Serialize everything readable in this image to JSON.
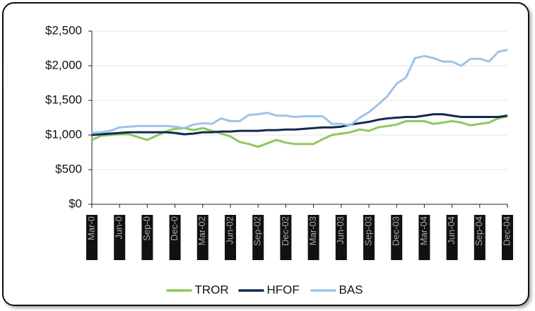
{
  "chart_data": {
    "type": "line",
    "categories": [
      "Mar-0",
      null,
      null,
      "Jun-0",
      null,
      null,
      "Sep-0",
      null,
      null,
      "Dec-0",
      null,
      null,
      "Mar-02",
      null,
      null,
      "Jun-02",
      null,
      null,
      "Sep-02",
      null,
      null,
      "Dec-02",
      null,
      null,
      "Mar-03",
      null,
      null,
      "Jun-03",
      null,
      null,
      "Sep-03",
      null,
      null,
      "Dec-03",
      null,
      null,
      "Mar-04",
      null,
      null,
      "Jun-04",
      null,
      null,
      "Sep-04",
      null,
      null,
      "Dec-04"
    ],
    "series": [
      {
        "name": "TROR",
        "color": "#8dc858",
        "values": [
          930,
          990,
          1000,
          1010,
          1010,
          970,
          930,
          990,
          1050,
          1090,
          1100,
          1070,
          1100,
          1060,
          1020,
          980,
          900,
          870,
          830,
          880,
          930,
          890,
          870,
          870,
          870,
          940,
          1000,
          1020,
          1040,
          1080,
          1060,
          1110,
          1130,
          1150,
          1200,
          1200,
          1200,
          1160,
          1180,
          1200,
          1180,
          1140,
          1160,
          1180,
          1240,
          1270
        ]
      },
      {
        "name": "HFOF",
        "color": "#0f2a4d",
        "values": [
          1000,
          1010,
          1020,
          1030,
          1040,
          1040,
          1040,
          1040,
          1040,
          1030,
          1010,
          1020,
          1040,
          1040,
          1050,
          1050,
          1060,
          1060,
          1060,
          1070,
          1070,
          1080,
          1080,
          1090,
          1100,
          1110,
          1110,
          1120,
          1150,
          1170,
          1190,
          1220,
          1240,
          1250,
          1260,
          1260,
          1280,
          1300,
          1300,
          1280,
          1260,
          1260,
          1260,
          1260,
          1260,
          1280
        ]
      },
      {
        "name": "BAS",
        "color": "#9dc4e7",
        "values": [
          1030,
          1040,
          1060,
          1110,
          1120,
          1130,
          1130,
          1130,
          1130,
          1120,
          1100,
          1150,
          1170,
          1160,
          1240,
          1200,
          1200,
          1290,
          1300,
          1320,
          1280,
          1280,
          1260,
          1270,
          1270,
          1270,
          1160,
          1160,
          1140,
          1250,
          1330,
          1440,
          1560,
          1740,
          1830,
          2110,
          2140,
          2110,
          2060,
          2060,
          2000,
          2100,
          2100,
          2060,
          2200,
          2230
        ]
      }
    ],
    "ylim": [
      0,
      2500
    ],
    "yticks": [
      {
        "value": 0,
        "label": "$0"
      },
      {
        "value": 500,
        "label": "$500"
      },
      {
        "value": 1000,
        "label": "$1,000"
      },
      {
        "value": 1500,
        "label": "$1,500"
      },
      {
        "value": 2000,
        "label": "$2,000"
      },
      {
        "value": 2500,
        "label": "$2,500"
      }
    ],
    "grid": true,
    "legend": "bottom"
  }
}
